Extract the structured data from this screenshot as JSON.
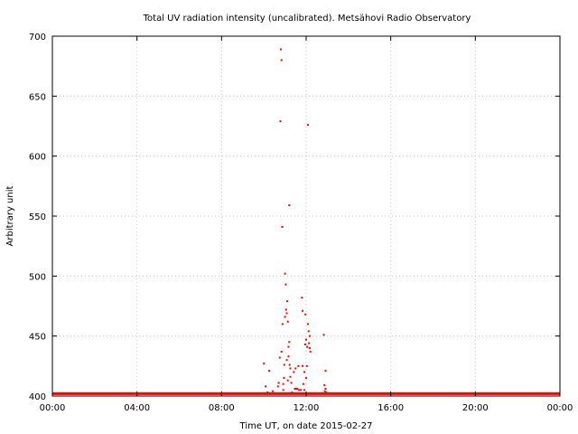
{
  "chart_data": {
    "type": "scatter",
    "title": "Total UV radiation intensity (uncalibrated). Metsähovi Radio Observatory",
    "xlabel": "Time UT, on date 2015-02-27",
    "ylabel": "Arbitrary unit",
    "xlim": [
      "00:00",
      "24:00"
    ],
    "ylim": [
      400,
      700
    ],
    "x_ticks": [
      "00:00",
      "04:00",
      "08:00",
      "12:00",
      "16:00",
      "20:00",
      "00:00"
    ],
    "y_ticks": [
      "400",
      "450",
      "500",
      "550",
      "600",
      "650",
      "700"
    ],
    "grid": true,
    "legend": "none",
    "colors": {
      "points": "#ff0000",
      "grid": "#c8c8c8",
      "axes": "#000000"
    },
    "baseline": {
      "value": 402,
      "from": "00:00",
      "to": "24:00"
    },
    "series": [
      {
        "x": [
          "10:00",
          "10:05",
          "10:10",
          "10:15",
          "10:25",
          "10:40",
          "10:42",
          "10:45",
          "10:47",
          "10:48",
          "10:50",
          "10:50",
          "10:52",
          "10:53",
          "10:55",
          "10:55",
          "10:57",
          "10:58",
          "11:00",
          "11:00",
          "11:02",
          "11:03",
          "11:05",
          "11:05",
          "11:06",
          "11:08",
          "11:08",
          "11:10",
          "11:10",
          "11:12",
          "11:12",
          "11:13",
          "11:15",
          "11:15",
          "11:18",
          "11:20",
          "11:25",
          "11:28",
          "11:30",
          "11:33",
          "11:35",
          "11:38",
          "11:40",
          "11:45",
          "11:48",
          "11:50",
          "11:50",
          "11:52",
          "11:55",
          "11:55",
          "11:57",
          "11:58",
          "12:00",
          "12:00",
          "12:02",
          "12:03",
          "12:05",
          "12:05",
          "12:07",
          "12:08",
          "12:10",
          "12:10",
          "12:12",
          "12:15",
          "12:50",
          "12:52",
          "12:53",
          "12:55",
          "12:55",
          "12:57"
        ],
        "y": [
          427,
          408,
          403,
          421,
          404,
          408,
          411,
          432,
          629,
          689,
          680,
          437,
          541,
          460,
          405,
          410,
          415,
          426,
          502,
          466,
          493,
          472,
          469,
          430,
          479,
          462,
          413,
          433,
          441,
          445,
          559,
          426,
          423,
          416,
          411,
          403,
          420,
          406,
          423,
          406,
          406,
          425,
          405,
          405,
          482,
          471,
          425,
          410,
          405,
          420,
          443,
          468,
          415,
          447,
          425,
          441,
          460,
          626,
          454,
          444,
          450,
          440,
          437,
          402,
          451,
          409,
          404,
          421,
          406,
          403
        ]
      }
    ]
  }
}
